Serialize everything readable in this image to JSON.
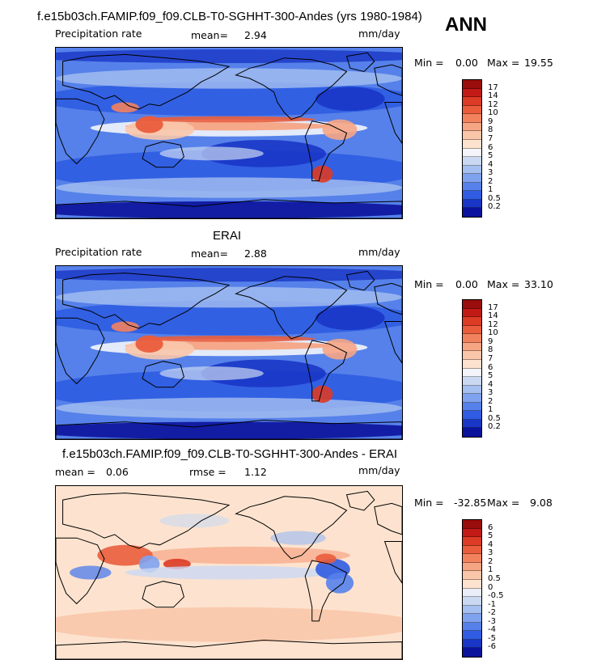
{
  "header": {
    "run_title": "f.e15b03ch.FAMIP.f09_f09.CLB-T0-SGHHT-300-Andes (yrs 1980-1984)",
    "season": "ANN"
  },
  "panels": [
    {
      "title": "",
      "variable": "Precipitation rate",
      "mean_label": "mean=",
      "mean_value": "2.94",
      "units": "mm/day",
      "min_label": "Min =",
      "min_value": "0.00",
      "max_label": "Max =",
      "max_value": "19.55",
      "colorbar": {
        "labels": [
          "17",
          "14",
          "12",
          "10",
          "9",
          "8",
          "7",
          "6",
          "5",
          "4",
          "3",
          "2",
          "1",
          "0.5",
          "0.2"
        ],
        "colors": [
          "#9a0d0d",
          "#c21a16",
          "#dc3b25",
          "#ea5d3c",
          "#f2825e",
          "#f6a584",
          "#fac6aa",
          "#fde3cf",
          "#f3f5fb",
          "#cad8f2",
          "#a5bff0",
          "#7fa2ee",
          "#5681ea",
          "#2f5ce2",
          "#1936c6",
          "#0b129c"
        ]
      },
      "colormap": "precip"
    },
    {
      "title": "ERAI",
      "variable": "Precipitation rate",
      "mean_label": "mean=",
      "mean_value": "2.88",
      "units": "mm/day",
      "min_label": "Min =",
      "min_value": "0.00",
      "max_label": "Max =",
      "max_value": "33.10",
      "colorbar": {
        "labels": [
          "17",
          "14",
          "12",
          "10",
          "9",
          "8",
          "7",
          "6",
          "5",
          "4",
          "3",
          "2",
          "1",
          "0.5",
          "0.2"
        ],
        "colors": [
          "#9a0d0d",
          "#c21a16",
          "#dc3b25",
          "#ea5d3c",
          "#f2825e",
          "#f6a584",
          "#fac6aa",
          "#fde3cf",
          "#f3f5fb",
          "#cad8f2",
          "#a5bff0",
          "#7fa2ee",
          "#5681ea",
          "#2f5ce2",
          "#1936c6",
          "#0b129c"
        ]
      },
      "colormap": "precip"
    },
    {
      "title": "f.e15b03ch.FAMIP.f09_f09.CLB-T0-SGHHT-300-Andes - ERAI",
      "variable": "",
      "mean_label": "mean =",
      "mean_value": "0.06",
      "rmse_label": "rmse =",
      "rmse_value": "1.12",
      "units": "mm/day",
      "min_label": "Min =",
      "min_value": "-32.85",
      "max_label": "Max =",
      "max_value": "9.08",
      "colorbar": {
        "labels": [
          "6",
          "5",
          "4",
          "3",
          "2",
          "1",
          "0.5",
          "0",
          "-0.5",
          "-1",
          "-2",
          "-3",
          "-4",
          "-5",
          "-6"
        ],
        "colors": [
          "#9a0d0d",
          "#c21a16",
          "#dc3b25",
          "#ea5d3c",
          "#f2825e",
          "#f6a584",
          "#fac6aa",
          "#fde3cf",
          "#e9eef8",
          "#cad8f2",
          "#a5bff0",
          "#7fa2ee",
          "#5681ea",
          "#2f5ce2",
          "#1936c6",
          "#0b129c"
        ]
      },
      "colormap": "diff"
    }
  ]
}
